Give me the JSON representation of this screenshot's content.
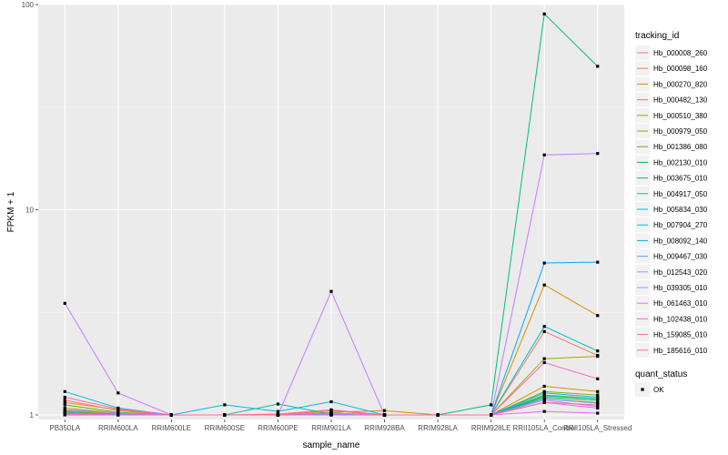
{
  "chart_data": {
    "type": "line",
    "xlabel": "sample_name",
    "ylabel": "FPKM + 1",
    "y_scale": "log10",
    "ylim": [
      0.95,
      100
    ],
    "y_ticks": [
      1,
      10,
      100
    ],
    "y_tick_labels": [
      "1",
      "10",
      "100"
    ],
    "grid": true,
    "legend_position": "right",
    "categories": [
      "PB350LA",
      "RRIM600LA",
      "RRIM600LE",
      "RRIM600SE",
      "RRIM600PE",
      "RRIM901LA",
      "RRIM928BA",
      "RRIM928LA",
      "RRIM928LE",
      "RRII105LA_Control",
      "RRII105LA_Stressed"
    ],
    "color_legend_title": "tracking_id",
    "shape_legend_title": "quant_status",
    "shape_legend_items": [
      {
        "label": "OK",
        "shape": "square"
      }
    ],
    "series": [
      {
        "name": "Hb_000008_260",
        "color": "#F8766D",
        "values": [
          1.18,
          1.05,
          1.0,
          1.0,
          1.01,
          1.06,
          1.0,
          1.0,
          1.0,
          2.55,
          1.95
        ]
      },
      {
        "name": "Hb_000098_160",
        "color": "#EE8042",
        "values": [
          1.15,
          1.06,
          1.0,
          1.0,
          1.0,
          1.05,
          1.0,
          1.0,
          1.0,
          1.2,
          1.15
        ]
      },
      {
        "name": "Hb_000270_820",
        "color": "#DE8C00",
        "values": [
          1.05,
          1.02,
          1.0,
          1.0,
          1.0,
          1.02,
          1.0,
          1.0,
          1.0,
          4.3,
          3.05
        ]
      },
      {
        "name": "Hb_000482_130",
        "color": "#C99800",
        "values": [
          1.04,
          1.01,
          1.0,
          1.0,
          1.0,
          1.01,
          1.0,
          1.0,
          1.0,
          1.38,
          1.3
        ]
      },
      {
        "name": "Hb_000510_380",
        "color": "#AEA200",
        "values": [
          1.08,
          1.02,
          1.0,
          1.0,
          1.0,
          1.03,
          1.05,
          1.0,
          1.0,
          1.88,
          1.93
        ]
      },
      {
        "name": "Hb_000979_050",
        "color": "#8CAB00",
        "values": [
          1.03,
          1.01,
          1.0,
          1.0,
          1.0,
          1.01,
          1.0,
          1.0,
          1.0,
          1.3,
          1.25
        ]
      },
      {
        "name": "Hb_001386_080",
        "color": "#5BB300",
        "values": [
          1.12,
          1.03,
          1.0,
          1.0,
          1.0,
          1.02,
          1.0,
          1.0,
          1.0,
          1.25,
          1.2
        ]
      },
      {
        "name": "Hb_002130_010",
        "color": "#00BA38",
        "values": [
          1.02,
          1.01,
          1.0,
          1.0,
          1.0,
          1.01,
          1.0,
          1.0,
          1.0,
          1.22,
          1.18
        ]
      },
      {
        "name": "Hb_003675_010",
        "color": "#00BF74",
        "values": [
          1.01,
          1.0,
          1.0,
          1.0,
          1.0,
          1.0,
          1.0,
          1.0,
          1.12,
          90.0,
          50.0
        ]
      },
      {
        "name": "Hb_004917_050",
        "color": "#00C19F",
        "values": [
          1.03,
          1.01,
          1.0,
          1.0,
          1.13,
          1.01,
          1.0,
          1.0,
          1.0,
          1.24,
          1.2
        ]
      },
      {
        "name": "Hb_005834_030",
        "color": "#00BFC4",
        "values": [
          1.02,
          1.01,
          1.0,
          1.0,
          1.0,
          1.01,
          1.0,
          1.0,
          1.0,
          2.7,
          2.05
        ]
      },
      {
        "name": "Hb_007904_270",
        "color": "#00B8E7",
        "values": [
          1.3,
          1.08,
          1.0,
          1.12,
          1.04,
          1.16,
          1.0,
          1.0,
          1.0,
          1.28,
          1.22
        ]
      },
      {
        "name": "Hb_008092_140",
        "color": "#00A9FF",
        "values": [
          1.01,
          1.0,
          1.0,
          1.0,
          1.0,
          1.0,
          1.0,
          1.0,
          1.0,
          5.5,
          5.55
        ]
      },
      {
        "name": "Hb_009467_030",
        "color": "#619CFF",
        "values": [
          1.02,
          1.01,
          1.0,
          1.0,
          1.0,
          1.01,
          1.0,
          1.0,
          1.0,
          1.2,
          1.14
        ]
      },
      {
        "name": "Hb_012543_020",
        "color": "#9F8CFF",
        "values": [
          1.06,
          1.02,
          1.0,
          1.0,
          1.0,
          1.02,
          1.0,
          1.0,
          1.0,
          1.18,
          1.1
        ]
      },
      {
        "name": "Hb_039305_010",
        "color": "#C77CFF",
        "values": [
          3.5,
          1.28,
          1.0,
          1.0,
          1.0,
          4.0,
          1.0,
          1.0,
          1.0,
          18.5,
          18.8
        ]
      },
      {
        "name": "Hb_061463_010",
        "color": "#E76BF3",
        "values": [
          1.01,
          1.0,
          1.0,
          1.0,
          1.0,
          1.0,
          1.0,
          1.0,
          1.0,
          1.04,
          1.02
        ]
      },
      {
        "name": "Hb_102438_010",
        "color": "#FA62DB",
        "values": [
          1.01,
          1.0,
          1.0,
          1.0,
          1.0,
          1.0,
          1.0,
          1.0,
          1.0,
          1.15,
          1.08
        ]
      },
      {
        "name": "Hb_159085_010",
        "color": "#FF62BC",
        "values": [
          1.0,
          1.0,
          1.0,
          1.0,
          1.0,
          1.0,
          1.0,
          1.0,
          1.0,
          1.8,
          1.5
        ]
      },
      {
        "name": "Hb_185616_010",
        "color": "#FF6C91",
        "values": [
          1.22,
          1.07,
          1.0,
          1.0,
          1.0,
          1.05,
          1.0,
          1.0,
          1.0,
          1.15,
          1.12
        ]
      }
    ]
  }
}
